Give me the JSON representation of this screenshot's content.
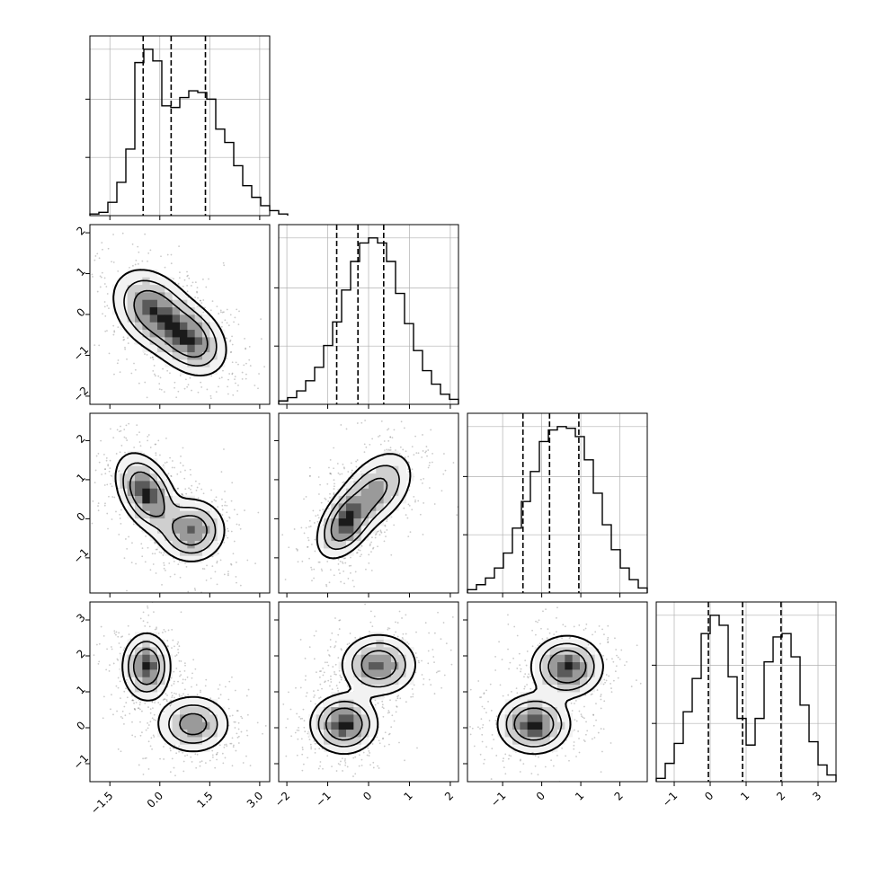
{
  "chart_data": {
    "type": "corner",
    "n_params": 4,
    "grid": true,
    "colors": {
      "line": "#000000",
      "grid": "#b0b0b0",
      "density_dark": "#000000",
      "density_light": "#ffffff"
    },
    "axes": [
      {
        "range": [
          -2.1,
          3.3
        ],
        "ticks": [
          -1.5,
          0.0,
          1.5,
          3.0
        ],
        "tick_labels": [
          "−1.5",
          "0.0",
          "1.5",
          "3.0"
        ]
      },
      {
        "range": [
          -2.2,
          2.2
        ],
        "ticks": [
          -2,
          -1,
          0,
          1,
          2
        ],
        "tick_labels": [
          "−2",
          "−1",
          "0",
          "1",
          "2"
        ]
      },
      {
        "range": [
          -1.9,
          2.7
        ],
        "ticks": [
          -1,
          0,
          1,
          2
        ],
        "tick_labels": [
          "−1",
          "0",
          "1",
          "2"
        ]
      },
      {
        "range": [
          -1.5,
          3.5
        ],
        "ticks": [
          -1,
          0,
          1,
          2,
          3
        ],
        "tick_labels": [
          "−1",
          "0",
          "1",
          "2",
          "3"
        ]
      }
    ],
    "histograms": [
      {
        "param": 0,
        "bin_start": -2.1,
        "bin_width": 0.27,
        "counts": [
          0.01,
          0.02,
          0.08,
          0.2,
          0.4,
          0.92,
          1.0,
          0.93,
          0.66,
          0.65,
          0.71,
          0.75,
          0.74,
          0.7,
          0.52,
          0.44,
          0.3,
          0.18,
          0.11,
          0.06,
          0.03,
          0.01
        ],
        "quantiles": [
          -0.5,
          0.34,
          1.37
        ]
      },
      {
        "param": 1,
        "bin_start": -2.2,
        "bin_width": 0.22,
        "counts": [
          0.02,
          0.04,
          0.08,
          0.14,
          0.22,
          0.35,
          0.49,
          0.68,
          0.85,
          0.96,
          0.99,
          0.96,
          0.85,
          0.66,
          0.48,
          0.32,
          0.2,
          0.12,
          0.06,
          0.03
        ],
        "quantiles": [
          -0.78,
          -0.26,
          0.37
        ]
      },
      {
        "param": 2,
        "bin_start": -1.9,
        "bin_width": 0.23,
        "counts": [
          0.02,
          0.05,
          0.09,
          0.15,
          0.24,
          0.39,
          0.55,
          0.73,
          0.91,
          0.98,
          1.0,
          0.99,
          0.94,
          0.8,
          0.6,
          0.41,
          0.26,
          0.15,
          0.08,
          0.03
        ],
        "quantiles": [
          -0.48,
          0.2,
          0.95
        ]
      },
      {
        "param": 3,
        "bin_start": -1.5,
        "bin_width": 0.25,
        "counts": [
          0.02,
          0.11,
          0.23,
          0.42,
          0.62,
          0.89,
          1.0,
          0.94,
          0.63,
          0.38,
          0.22,
          0.38,
          0.72,
          0.87,
          0.89,
          0.75,
          0.46,
          0.24,
          0.1,
          0.04
        ],
        "quantiles": [
          -0.05,
          0.9,
          1.97
        ]
      }
    ],
    "pairs": [
      {
        "x": 0,
        "y": 1,
        "n_points": 700,
        "components": [
          {
            "w": 0.55,
            "mean": [
              -0.2,
              0.1
            ],
            "sd": [
              0.6,
              0.5
            ],
            "rho": -0.3
          },
          {
            "w": 0.45,
            "mean": [
              0.9,
              -0.6
            ],
            "sd": [
              0.55,
              0.45
            ],
            "rho": -0.3
          }
        ]
      },
      {
        "x": 0,
        "y": 2,
        "n_points": 700,
        "components": [
          {
            "w": 0.55,
            "mean": [
              -0.4,
              0.65
            ],
            "sd": [
              0.45,
              0.5
            ],
            "rho": -0.4
          },
          {
            "w": 0.45,
            "mean": [
              0.95,
              -0.3
            ],
            "sd": [
              0.5,
              0.4
            ],
            "rho": 0.0
          }
        ]
      },
      {
        "x": 0,
        "y": 3,
        "n_points": 700,
        "components": [
          {
            "w": 0.5,
            "mean": [
              -0.4,
              1.7
            ],
            "sd": [
              0.35,
              0.45
            ],
            "rho": 0.0
          },
          {
            "w": 0.5,
            "mean": [
              1.0,
              0.1
            ],
            "sd": [
              0.55,
              0.4
            ],
            "rho": 0.0
          }
        ]
      },
      {
        "x": 1,
        "y": 2,
        "n_points": 700,
        "components": [
          {
            "w": 0.5,
            "mean": [
              -0.55,
              -0.1
            ],
            "sd": [
              0.35,
              0.45
            ],
            "rho": 0.45
          },
          {
            "w": 0.5,
            "mean": [
              0.2,
              0.75
            ],
            "sd": [
              0.45,
              0.5
            ],
            "rho": 0.4
          }
        ]
      },
      {
        "x": 1,
        "y": 3,
        "n_points": 700,
        "components": [
          {
            "w": 0.5,
            "mean": [
              -0.6,
              0.1
            ],
            "sd": [
              0.4,
              0.4
            ],
            "rho": 0.0
          },
          {
            "w": 0.5,
            "mean": [
              0.25,
              1.75
            ],
            "sd": [
              0.45,
              0.42
            ],
            "rho": 0.0
          }
        ]
      },
      {
        "x": 2,
        "y": 3,
        "n_points": 700,
        "components": [
          {
            "w": 0.5,
            "mean": [
              -0.2,
              0.1
            ],
            "sd": [
              0.45,
              0.4
            ],
            "rho": 0.0
          },
          {
            "w": 0.5,
            "mean": [
              0.65,
              1.7
            ],
            "sd": [
              0.45,
              0.42
            ],
            "rho": 0.0
          }
        ]
      }
    ]
  }
}
